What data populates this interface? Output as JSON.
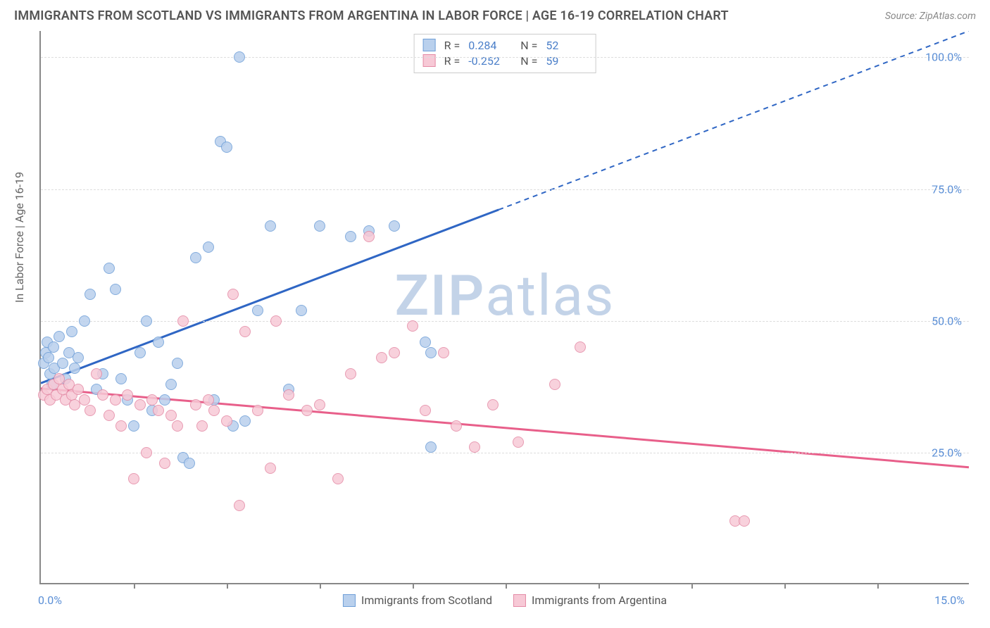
{
  "title": "IMMIGRANTS FROM SCOTLAND VS IMMIGRANTS FROM ARGENTINA IN LABOR FORCE | AGE 16-19 CORRELATION CHART",
  "source": "Source: ZipAtlas.com",
  "ylabel": "In Labor Force | Age 16-19",
  "watermark_a": "ZIP",
  "watermark_b": "atlas",
  "chart": {
    "type": "scatter",
    "xlim": [
      0,
      15
    ],
    "ylim": [
      0,
      105
    ],
    "xticks": [
      1.5,
      3.0,
      4.5,
      6.0,
      7.5,
      9.0,
      10.5,
      12.0,
      13.5
    ],
    "yticks": [
      {
        "v": 25,
        "label": "25.0%"
      },
      {
        "v": 50,
        "label": "50.0%"
      },
      {
        "v": 75,
        "label": "75.0%"
      },
      {
        "v": 100,
        "label": "100.0%"
      }
    ],
    "xaxis_left": "0.0%",
    "xaxis_right": "15.0%",
    "background_color": "#ffffff",
    "grid_color": "#dddddd",
    "marker_radius": 8,
    "series": [
      {
        "name": "Immigrants from Scotland",
        "fill": "#b9d0ed",
        "stroke": "#6f9fd8",
        "line_color": "#2f66c4",
        "r": "0.284",
        "n": "52",
        "trend": {
          "x1": 0,
          "y1": 38,
          "x2": 7.4,
          "y2": 71,
          "x3": 15,
          "y3": 105,
          "dashed_from": 7.4
        },
        "points": [
          [
            0.05,
            42
          ],
          [
            0.08,
            44
          ],
          [
            0.1,
            46
          ],
          [
            0.12,
            43
          ],
          [
            0.15,
            40
          ],
          [
            0.18,
            38
          ],
          [
            0.2,
            45
          ],
          [
            0.22,
            41
          ],
          [
            0.3,
            47
          ],
          [
            0.35,
            42
          ],
          [
            0.4,
            39
          ],
          [
            0.45,
            44
          ],
          [
            0.5,
            48
          ],
          [
            0.55,
            41
          ],
          [
            0.6,
            43
          ],
          [
            0.7,
            50
          ],
          [
            0.8,
            55
          ],
          [
            0.9,
            37
          ],
          [
            1.0,
            40
          ],
          [
            1.1,
            60
          ],
          [
            1.2,
            56
          ],
          [
            1.3,
            39
          ],
          [
            1.4,
            35
          ],
          [
            1.5,
            30
          ],
          [
            1.6,
            44
          ],
          [
            1.7,
            50
          ],
          [
            1.8,
            33
          ],
          [
            1.9,
            46
          ],
          [
            2.0,
            35
          ],
          [
            2.1,
            38
          ],
          [
            2.2,
            42
          ],
          [
            2.3,
            24
          ],
          [
            2.4,
            23
          ],
          [
            2.5,
            62
          ],
          [
            2.7,
            64
          ],
          [
            2.8,
            35
          ],
          [
            2.9,
            84
          ],
          [
            3.0,
            83
          ],
          [
            3.1,
            30
          ],
          [
            3.2,
            100
          ],
          [
            3.3,
            31
          ],
          [
            3.5,
            52
          ],
          [
            3.7,
            68
          ],
          [
            4.0,
            37
          ],
          [
            4.2,
            52
          ],
          [
            4.5,
            68
          ],
          [
            5.0,
            66
          ],
          [
            5.3,
            67
          ],
          [
            5.7,
            68
          ],
          [
            6.2,
            46
          ],
          [
            6.3,
            26
          ],
          [
            6.3,
            44
          ]
        ]
      },
      {
        "name": "Immigrants from Argentina",
        "fill": "#f7c9d6",
        "stroke": "#e48ba6",
        "line_color": "#e85f8a",
        "r": "-0.252",
        "n": "59",
        "trend": {
          "x1": 0,
          "y1": 37,
          "x2": 15,
          "y2": 22,
          "dashed_from": null
        },
        "points": [
          [
            0.05,
            36
          ],
          [
            0.1,
            37
          ],
          [
            0.15,
            35
          ],
          [
            0.2,
            38
          ],
          [
            0.25,
            36
          ],
          [
            0.3,
            39
          ],
          [
            0.35,
            37
          ],
          [
            0.4,
            35
          ],
          [
            0.45,
            38
          ],
          [
            0.5,
            36
          ],
          [
            0.55,
            34
          ],
          [
            0.6,
            37
          ],
          [
            0.7,
            35
          ],
          [
            0.8,
            33
          ],
          [
            0.9,
            40
          ],
          [
            1.0,
            36
          ],
          [
            1.1,
            32
          ],
          [
            1.2,
            35
          ],
          [
            1.3,
            30
          ],
          [
            1.4,
            36
          ],
          [
            1.5,
            20
          ],
          [
            1.6,
            34
          ],
          [
            1.7,
            25
          ],
          [
            1.8,
            35
          ],
          [
            1.9,
            33
          ],
          [
            2.0,
            23
          ],
          [
            2.1,
            32
          ],
          [
            2.2,
            30
          ],
          [
            2.3,
            50
          ],
          [
            2.5,
            34
          ],
          [
            2.6,
            30
          ],
          [
            2.7,
            35
          ],
          [
            2.8,
            33
          ],
          [
            3.0,
            31
          ],
          [
            3.1,
            55
          ],
          [
            3.2,
            15
          ],
          [
            3.3,
            48
          ],
          [
            3.5,
            33
          ],
          [
            3.7,
            22
          ],
          [
            3.8,
            50
          ],
          [
            4.0,
            36
          ],
          [
            4.3,
            33
          ],
          [
            4.5,
            34
          ],
          [
            4.8,
            20
          ],
          [
            5.0,
            40
          ],
          [
            5.3,
            66
          ],
          [
            5.5,
            43
          ],
          [
            5.7,
            44
          ],
          [
            6.0,
            49
          ],
          [
            6.2,
            33
          ],
          [
            6.5,
            44
          ],
          [
            6.7,
            30
          ],
          [
            7.0,
            26
          ],
          [
            7.3,
            34
          ],
          [
            7.7,
            27
          ],
          [
            8.3,
            38
          ],
          [
            8.7,
            45
          ],
          [
            11.2,
            12
          ],
          [
            11.35,
            12
          ]
        ]
      }
    ]
  },
  "legend_bottom": [
    {
      "label": "Immigrants from Scotland",
      "series": 0
    },
    {
      "label": "Immigrants from Argentina",
      "series": 1
    }
  ]
}
